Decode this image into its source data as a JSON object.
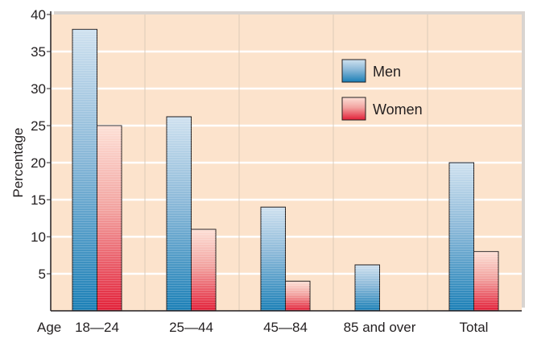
{
  "chart_data": {
    "type": "bar",
    "xlabel": "Age",
    "ylabel": "Percentage",
    "categories": [
      "18—24",
      "25—44",
      "45—84",
      "85 and over",
      "Total"
    ],
    "series": [
      {
        "name": "Men",
        "values": [
          38,
          26.2,
          14,
          6.2,
          20
        ],
        "color": "#2b86b8",
        "color_light": "#c8dcec"
      },
      {
        "name": "Women",
        "values": [
          25,
          11,
          4,
          0,
          8
        ],
        "color": "#e0303e",
        "color_light": "#fbd8cf"
      }
    ],
    "ylim": [
      0,
      40
    ],
    "yticks": [
      5,
      10,
      15,
      20,
      25,
      30,
      35,
      40
    ],
    "legend_position": "top-right",
    "grid": true,
    "plot_background": "#fce3cc",
    "gridline_color": "#ffffff",
    "separator_color": "#dccbb8"
  }
}
